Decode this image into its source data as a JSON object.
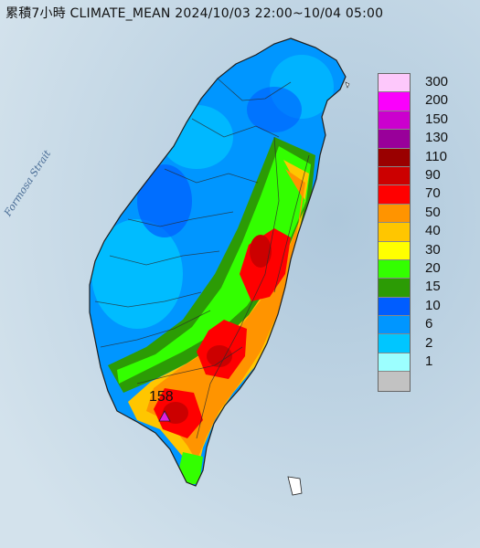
{
  "title": "累積7小時 CLIMATE_MEAN 2024/10/03 22:00~10/04 05:00",
  "strait_label": "Formosa Strait",
  "max_value_label": "158",
  "legend": {
    "levels": [
      {
        "label": "300",
        "color": "#fdc8fb"
      },
      {
        "label": "200",
        "color": "#fa00fc"
      },
      {
        "label": "150",
        "color": "#cb00ce"
      },
      {
        "label": "130",
        "color": "#99009a"
      },
      {
        "label": "110",
        "color": "#9a0000"
      },
      {
        "label": "90",
        "color": "#cc0000"
      },
      {
        "label": "70",
        "color": "#ff0000"
      },
      {
        "label": "50",
        "color": "#ff9400"
      },
      {
        "label": "40",
        "color": "#ffc600"
      },
      {
        "label": "30",
        "color": "#ffff00"
      },
      {
        "label": "20",
        "color": "#33ff00"
      },
      {
        "label": "15",
        "color": "#2c9b05"
      },
      {
        "label": "10",
        "color": "#005dff"
      },
      {
        "label": "6",
        "color": "#0096ff"
      },
      {
        "label": "2",
        "color": "#00c6ff"
      },
      {
        "label": "1",
        "color": "#9cffff"
      },
      {
        "label": "",
        "color": "#c2c2c2"
      }
    ]
  },
  "marker": {
    "shape": "triangle",
    "color": "#e020e0"
  }
}
